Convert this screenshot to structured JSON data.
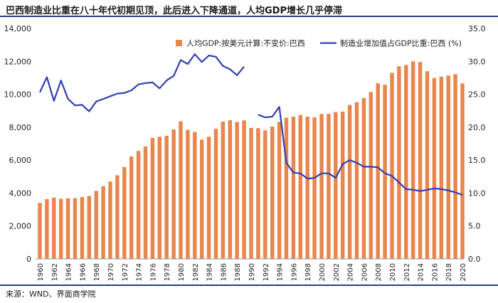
{
  "header": {
    "title": "巴西制造业比重在八十年代初期见顶，此后进入下降通道，人均GDP增长几乎停滞"
  },
  "footer": {
    "source": "来源：WND、界面商学院"
  },
  "colors": {
    "bar": "#e8864e",
    "line": "#2f3fb0",
    "rule": "#2b3e8a"
  },
  "chart_data": {
    "type": "bar",
    "legend_placement": "top-right",
    "grid": false,
    "years": [
      1960,
      1961,
      1962,
      1963,
      1964,
      1965,
      1966,
      1967,
      1968,
      1969,
      1970,
      1971,
      1972,
      1973,
      1974,
      1975,
      1976,
      1977,
      1978,
      1979,
      1980,
      1981,
      1982,
      1983,
      1984,
      1985,
      1986,
      1987,
      1988,
      1989,
      1990,
      1991,
      1992,
      1993,
      1994,
      1995,
      1996,
      1997,
      1998,
      1999,
      2000,
      2001,
      2002,
      2003,
      2004,
      2005,
      2006,
      2007,
      2008,
      2009,
      2010,
      2011,
      2012,
      2013,
      2014,
      2015,
      2016,
      2017,
      2018,
      2019,
      2020
    ],
    "x_tick_labels": [
      "1960",
      "1962",
      "1964",
      "1966",
      "1968",
      "1970",
      "1972",
      "1974",
      "1976",
      "1978",
      "1980",
      "1982",
      "1984",
      "1986",
      "1988",
      "1990",
      "1992",
      "1994",
      "1996",
      "1998",
      "2000",
      "2002",
      "2004",
      "2006",
      "2008",
      "2010",
      "2012",
      "2014",
      "2016",
      "2018",
      "2020"
    ],
    "y_left": {
      "range": [
        0,
        14000
      ],
      "ticks": [
        "0",
        "2,000",
        "4,000",
        "6,000",
        "8,000",
        "10,000",
        "12,000",
        "14,000"
      ]
    },
    "y_right": {
      "range": [
        0,
        35
      ],
      "ticks": [
        "0.0",
        "5.0",
        "10.0",
        "15.0",
        "20.0",
        "25.0",
        "30.0",
        "35.0"
      ]
    },
    "series": [
      {
        "name": "人均GDP:按美元计算:不变价:巴西",
        "type": "bar",
        "axis": "left",
        "values": [
          3400,
          3630,
          3720,
          3650,
          3680,
          3690,
          3760,
          3820,
          4130,
          4420,
          4700,
          5080,
          5580,
          6220,
          6560,
          6830,
          7350,
          7420,
          7480,
          7860,
          8360,
          7830,
          7720,
          7250,
          7420,
          7900,
          8340,
          8420,
          8320,
          8410,
          7960,
          7940,
          7810,
          8040,
          8330,
          8580,
          8640,
          8740,
          8640,
          8600,
          8800,
          8810,
          8920,
          8950,
          9350,
          9520,
          9770,
          10140,
          10670,
          10580,
          11300,
          11700,
          11780,
          12000,
          11960,
          11400,
          10990,
          11070,
          11140,
          11220,
          10660
        ]
      },
      {
        "name": "制造业增加值占GDP比重:巴西 (%)",
        "type": "line",
        "axis": "right",
        "values": [
          25.3,
          27.6,
          24.0,
          27.1,
          24.3,
          23.3,
          23.4,
          22.4,
          23.9,
          24.3,
          24.7,
          25.1,
          25.2,
          25.6,
          26.5,
          26.7,
          26.8,
          25.9,
          27.1,
          27.8,
          30.2,
          29.6,
          31.1,
          29.9,
          30.9,
          30.7,
          29.3,
          28.8,
          27.9,
          29.2,
          null,
          21.9,
          21.5,
          21.6,
          23.1,
          14.6,
          13.1,
          13.0,
          12.2,
          12.3,
          13.0,
          13.0,
          12.3,
          14.4,
          15.0,
          14.6,
          14.0,
          14.0,
          13.9,
          13.0,
          12.6,
          11.6,
          10.6,
          10.5,
          10.3,
          10.5,
          10.7,
          10.6,
          10.4,
          10.1,
          9.7
        ]
      }
    ]
  }
}
